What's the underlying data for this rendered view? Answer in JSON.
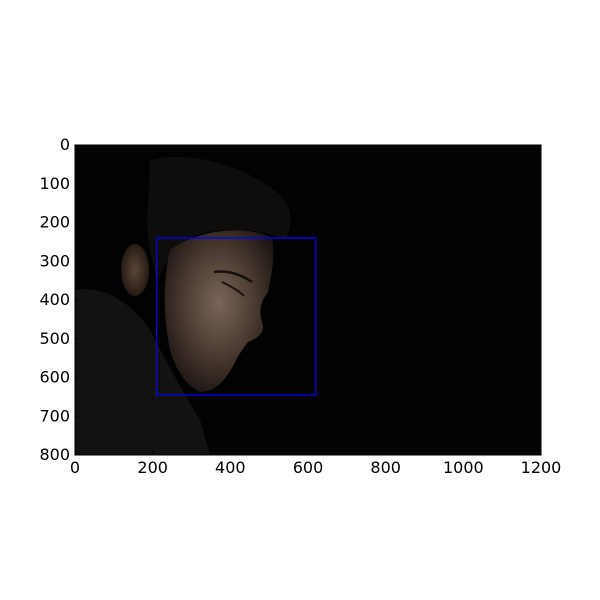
{
  "chart_data": {
    "type": "image",
    "title": "",
    "xlabel": "",
    "ylabel": "",
    "xlim": [
      0,
      1200
    ],
    "ylim": [
      800,
      0
    ],
    "x_ticks": [
      "0",
      "200",
      "400",
      "600",
      "800",
      "1000",
      "1200"
    ],
    "y_ticks": [
      "0",
      "100",
      "200",
      "300",
      "400",
      "500",
      "600",
      "700",
      "800"
    ],
    "image_content": "dark portrait photo of a man in profile facing right",
    "annotations": [
      {
        "type": "rectangle",
        "label": "face bounding box",
        "x": [
          210,
          620
        ],
        "y": [
          240,
          645
        ],
        "color": "#0000ff"
      }
    ]
  },
  "colors": {
    "background": "#000000",
    "box": "#0000ff",
    "axis": "#000000"
  }
}
